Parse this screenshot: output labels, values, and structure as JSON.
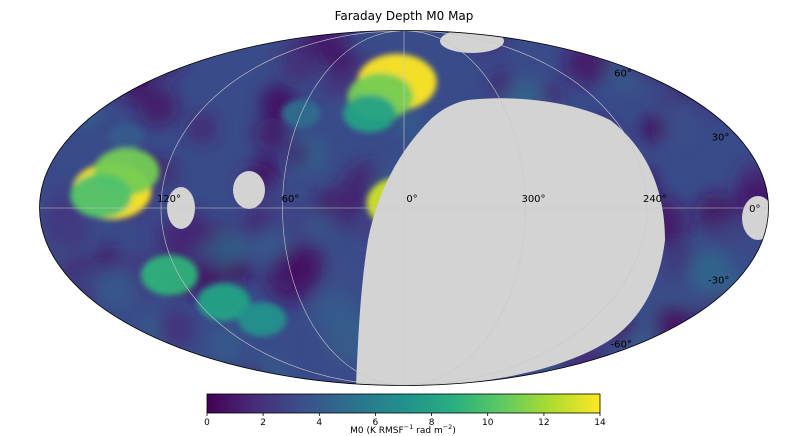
{
  "chart_data": {
    "type": "heatmap",
    "title": "Faraday Depth M0 Map",
    "projection": "mollweide",
    "grid": true,
    "colormap": "viridis",
    "masked_color": "#d3d3d3",
    "lon_ticks": [
      {
        "value": 120,
        "label": "120°"
      },
      {
        "value": 60,
        "label": "60°"
      },
      {
        "value": 0,
        "label": "0°"
      },
      {
        "value": 300,
        "label": "300°"
      },
      {
        "value": 240,
        "label": "240°"
      }
    ],
    "lat_ticks": [
      {
        "value": 60,
        "label": "60°"
      },
      {
        "value": 30,
        "label": "30°"
      },
      {
        "value": 0,
        "label": "0°"
      },
      {
        "value": -30,
        "label": "-30°"
      },
      {
        "value": -60,
        "label": "-60°"
      }
    ],
    "colorbar": {
      "label_main": "M0 (K RMSF",
      "label_sup1": "−1",
      "label_mid": " rad m",
      "label_sup2": "−2",
      "label_end": ")",
      "range": [
        0,
        14
      ],
      "ticks": [
        "0",
        "2",
        "4",
        "6",
        "8",
        "10",
        "12",
        "14"
      ],
      "orientation": "horizontal"
    },
    "bright_regions": [
      {
        "lon": 145,
        "lat": 7,
        "value": 14
      },
      {
        "lon": 140,
        "lat": 15,
        "value": 11
      },
      {
        "lon": 150,
        "lat": 5,
        "value": 10
      },
      {
        "lon": 5,
        "lat": 55,
        "value": 14
      },
      {
        "lon": 15,
        "lat": 48,
        "value": 11
      },
      {
        "lon": 20,
        "lat": 40,
        "value": 8
      },
      {
        "lon": 0,
        "lat": 2,
        "value": 13
      },
      {
        "lon": 125,
        "lat": -28,
        "value": 9
      },
      {
        "lon": 105,
        "lat": -40,
        "value": 8
      },
      {
        "lon": 90,
        "lat": -48,
        "value": 7
      },
      {
        "lon": 60,
        "lat": 40,
        "value": 5
      },
      {
        "lon": 150,
        "lat": 30,
        "value": 4
      }
    ],
    "masked_regions": [
      {
        "description": "large masked southern/eastern region",
        "lon_range": [
          0,
          255
        ],
        "lat_range": [
          -90,
          35
        ]
      },
      {
        "lon": 95,
        "lat": 3
      },
      {
        "lon": 166,
        "lat": 0
      },
      {
        "lon": 190,
        "lat": 0
      },
      {
        "lon": 322,
        "lat": 62
      }
    ]
  }
}
